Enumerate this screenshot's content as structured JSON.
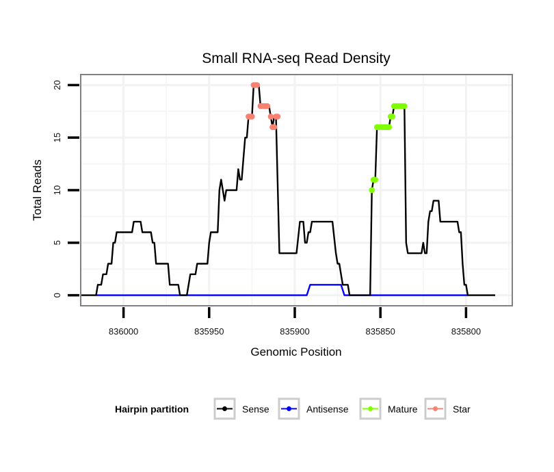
{
  "chart_data": {
    "type": "line",
    "title": "Small RNA-seq Read Density",
    "xlabel": "Genomic Position",
    "ylabel": "Total Reads",
    "x_reversed": true,
    "xlim": [
      836025,
      835773
    ],
    "ylim": [
      -1,
      21
    ],
    "x_ticks": [
      836000,
      835950,
      835900,
      835850,
      835800
    ],
    "x_tick_labels": [
      "836000",
      "835950",
      "835900",
      "835850",
      "835800"
    ],
    "y_ticks": [
      0,
      5,
      10,
      15,
      20
    ],
    "y_tick_labels": [
      "0",
      "5",
      "10",
      "15",
      "20"
    ],
    "grid": true,
    "legend": {
      "title": "Hairpin partition",
      "position": "bottom",
      "entries": [
        {
          "name": "Sense",
          "color": "#000000"
        },
        {
          "name": "Antisense",
          "color": "#0000ff"
        },
        {
          "name": "Mature",
          "color": "#7fff00"
        },
        {
          "name": "Star",
          "color": "#fa8072"
        }
      ]
    },
    "series": [
      {
        "name": "Sense",
        "color": "#000000",
        "points": [
          [
            836025,
            0
          ],
          [
            836016,
            0
          ],
          [
            836015,
            1
          ],
          [
            836013,
            1
          ],
          [
            836012,
            2
          ],
          [
            836010,
            2
          ],
          [
            836009,
            3
          ],
          [
            836007,
            3
          ],
          [
            836006,
            5
          ],
          [
            836005,
            5
          ],
          [
            836004,
            6
          ],
          [
            835995,
            6
          ],
          [
            835994,
            7
          ],
          [
            835990,
            7
          ],
          [
            835989,
            6
          ],
          [
            835984,
            6
          ],
          [
            835983,
            5
          ],
          [
            835982,
            5
          ],
          [
            835981,
            3
          ],
          [
            835974,
            3
          ],
          [
            835973,
            1
          ],
          [
            835968,
            1
          ],
          [
            835967,
            0
          ],
          [
            835963,
            0
          ],
          [
            835961,
            2
          ],
          [
            835958,
            2
          ],
          [
            835957,
            3
          ],
          [
            835951,
            3
          ],
          [
            835950,
            5
          ],
          [
            835949,
            6
          ],
          [
            835945,
            6
          ],
          [
            835944,
            10
          ],
          [
            835943,
            11
          ],
          [
            835942,
            10
          ],
          [
            835941,
            9
          ],
          [
            835940,
            10
          ],
          [
            835934,
            10
          ],
          [
            835933,
            12
          ],
          [
            835932,
            11
          ],
          [
            835931,
            11
          ],
          [
            835929,
            15
          ],
          [
            835928,
            15
          ],
          [
            835927,
            17
          ],
          [
            835925,
            17
          ],
          [
            835924,
            20
          ],
          [
            835921,
            20
          ],
          [
            835920,
            18
          ],
          [
            835915,
            18
          ],
          [
            835914,
            17
          ],
          [
            835913,
            16
          ],
          [
            835912,
            17
          ],
          [
            835911,
            17
          ],
          [
            835909,
            4
          ],
          [
            835899,
            4
          ],
          [
            835897,
            7
          ],
          [
            835895,
            7
          ],
          [
            835894,
            5
          ],
          [
            835893,
            5
          ],
          [
            835892,
            6
          ],
          [
            835891,
            6
          ],
          [
            835890,
            7
          ],
          [
            835878,
            7
          ],
          [
            835876,
            4
          ],
          [
            835875,
            3
          ],
          [
            835874,
            3
          ],
          [
            835873,
            2
          ],
          [
            835872,
            1
          ],
          [
            835869,
            1
          ],
          [
            835868,
            0
          ],
          [
            835856,
            0
          ],
          [
            835855,
            10
          ],
          [
            835854,
            11
          ],
          [
            835853,
            11
          ],
          [
            835852,
            16
          ],
          [
            835845,
            16
          ],
          [
            835844,
            17
          ],
          [
            835843,
            17
          ],
          [
            835842,
            18
          ],
          [
            835836,
            18
          ],
          [
            835835,
            5
          ],
          [
            835834,
            4
          ],
          [
            835826,
            4
          ],
          [
            835825,
            5
          ],
          [
            835824,
            4
          ],
          [
            835823,
            4
          ],
          [
            835822,
            7
          ],
          [
            835821,
            8
          ],
          [
            835820,
            8
          ],
          [
            835819,
            9
          ],
          [
            835816,
            9
          ],
          [
            835815,
            7
          ],
          [
            835805,
            7
          ],
          [
            835804,
            6
          ],
          [
            835803,
            6
          ],
          [
            835802,
            3
          ],
          [
            835801,
            1
          ],
          [
            835800,
            1
          ],
          [
            835799,
            0
          ],
          [
            835783,
            0
          ]
        ]
      },
      {
        "name": "Antisense",
        "color": "#0000ff",
        "points": [
          [
            836016,
            0
          ],
          [
            835893,
            0
          ],
          [
            835891,
            1
          ],
          [
            835873,
            1
          ],
          [
            835871,
            0
          ],
          [
            835799,
            0
          ]
        ]
      },
      {
        "name": "Mature",
        "color": "#7fff00",
        "points": [
          [
            835855,
            10
          ],
          [
            835854,
            11
          ],
          [
            835853,
            11
          ],
          [
            835852,
            16
          ],
          [
            835851,
            16
          ],
          [
            835850,
            16
          ],
          [
            835849,
            16
          ],
          [
            835848,
            16
          ],
          [
            835847,
            16
          ],
          [
            835846,
            16
          ],
          [
            835845,
            16
          ],
          [
            835844,
            17
          ],
          [
            835843,
            17
          ],
          [
            835842,
            18
          ],
          [
            835841,
            18
          ],
          [
            835840,
            18
          ],
          [
            835839,
            18
          ],
          [
            835838,
            18
          ],
          [
            835837,
            18
          ],
          [
            835836,
            18
          ]
        ]
      },
      {
        "name": "Star",
        "color": "#fa8072",
        "points": [
          [
            835927,
            17
          ],
          [
            835926,
            17
          ],
          [
            835925,
            17
          ],
          [
            835924,
            20
          ],
          [
            835923,
            20
          ],
          [
            835922,
            20
          ],
          [
            835920,
            18
          ],
          [
            835919,
            18
          ],
          [
            835918,
            18
          ],
          [
            835917,
            18
          ],
          [
            835916,
            18
          ],
          [
            835914,
            17
          ],
          [
            835913,
            16
          ],
          [
            835912,
            16
          ],
          [
            835911,
            17
          ],
          [
            835910,
            17
          ]
        ]
      }
    ]
  }
}
